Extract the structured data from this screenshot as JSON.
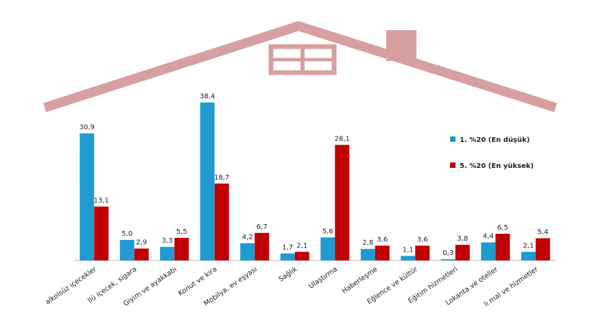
{
  "chart_data": {
    "type": "bar",
    "categories": [
      "alkolsüz içecekler",
      "llü içecek, sigara",
      "Giyim ve ayakkabı",
      "Konut ve kira",
      "Mobilya, ev eşyası",
      "Sağlık",
      "Ulaştırma",
      "Haberleşme",
      "Eğlence ve kültür",
      "Eğitim hizmetleri",
      "Lokanta ve oteller",
      "lı mal ve hizmetler"
    ],
    "series": [
      {
        "name": "1. %20 (En düşük)",
        "color": "#1f9bd1",
        "values": [
          30.9,
          5.0,
          3.3,
          38.4,
          4.2,
          1.7,
          5.6,
          2.8,
          1.1,
          0.3,
          4.4,
          2.1
        ],
        "value_labels": [
          "30,9",
          "5,0",
          "3,3",
          "38,4",
          "4,2",
          "1,7",
          "5,6",
          "2,8",
          "1,1",
          "0,3",
          "4,4",
          "2,1"
        ]
      },
      {
        "name": "5. %20 (En yüksek)",
        "color": "#c00000",
        "values": [
          13.1,
          2.9,
          5.5,
          18.7,
          6.7,
          2.1,
          28.1,
          3.6,
          3.6,
          3.8,
          6.5,
          5.4
        ],
        "value_labels": [
          "13,1",
          "2,9",
          "5,5",
          "18,7",
          "6,7",
          "2,1",
          "28,1",
          "3,6",
          "3,6",
          "3,8",
          "6,5",
          "5,4"
        ]
      }
    ]
  }
}
